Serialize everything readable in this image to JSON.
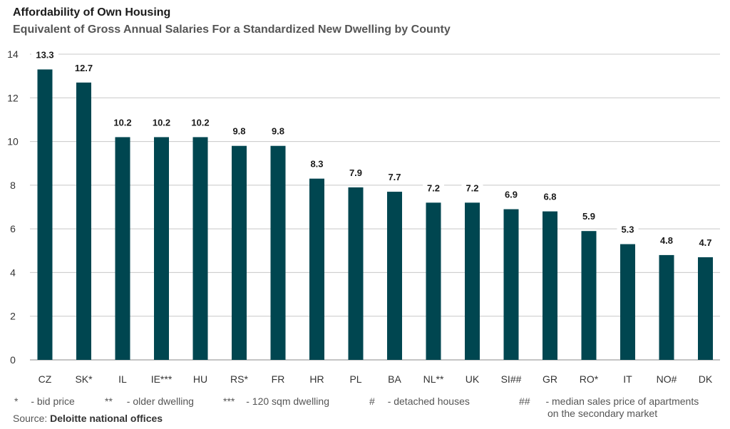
{
  "title": "Affordability of Own Housing",
  "subtitle": "Equivalent of Gross Annual Salaries For a Standardized New Dwelling by County",
  "chart_data": {
    "type": "bar",
    "categories": [
      "CZ",
      "SK*",
      "IL",
      "IE***",
      "HU",
      "RS*",
      "FR",
      "HR",
      "PL",
      "BA",
      "NL**",
      "UK",
      "SI##",
      "GR",
      "RO*",
      "IT",
      "NO#",
      "DK"
    ],
    "values": [
      13.3,
      12.7,
      10.2,
      10.2,
      10.2,
      9.8,
      9.8,
      8.3,
      7.9,
      7.7,
      7.2,
      7.2,
      6.9,
      6.8,
      5.9,
      5.3,
      4.8,
      4.7
    ],
    "value_labels": [
      "13.3",
      "12.7",
      "10.2",
      "10.2",
      "10.2",
      "9.8",
      "9.8",
      "8.3",
      "7.9",
      "7.7",
      "7.2",
      "7.2",
      "6.9",
      "6.8",
      "5.9",
      "5.3",
      "4.8",
      "4.7"
    ],
    "ylim": [
      0,
      14
    ],
    "yticks": [
      0,
      2,
      4,
      6,
      8,
      10,
      12,
      14
    ],
    "grid": true,
    "bar_color": "#004650",
    "grid_color": "#c8c8c8"
  },
  "notes": [
    {
      "symbol": "*",
      "text": "- bid price"
    },
    {
      "symbol": "**",
      "text": "- older dwelling"
    },
    {
      "symbol": "***",
      "text": "- 120 sqm dwelling"
    },
    {
      "symbol": "#",
      "text": "- detached houses"
    },
    {
      "symbol": "##",
      "text": "- median sales price of apartments",
      "text2": "on the secondary market"
    }
  ],
  "source": {
    "label": "Source:",
    "value": "Deloitte national offices"
  }
}
